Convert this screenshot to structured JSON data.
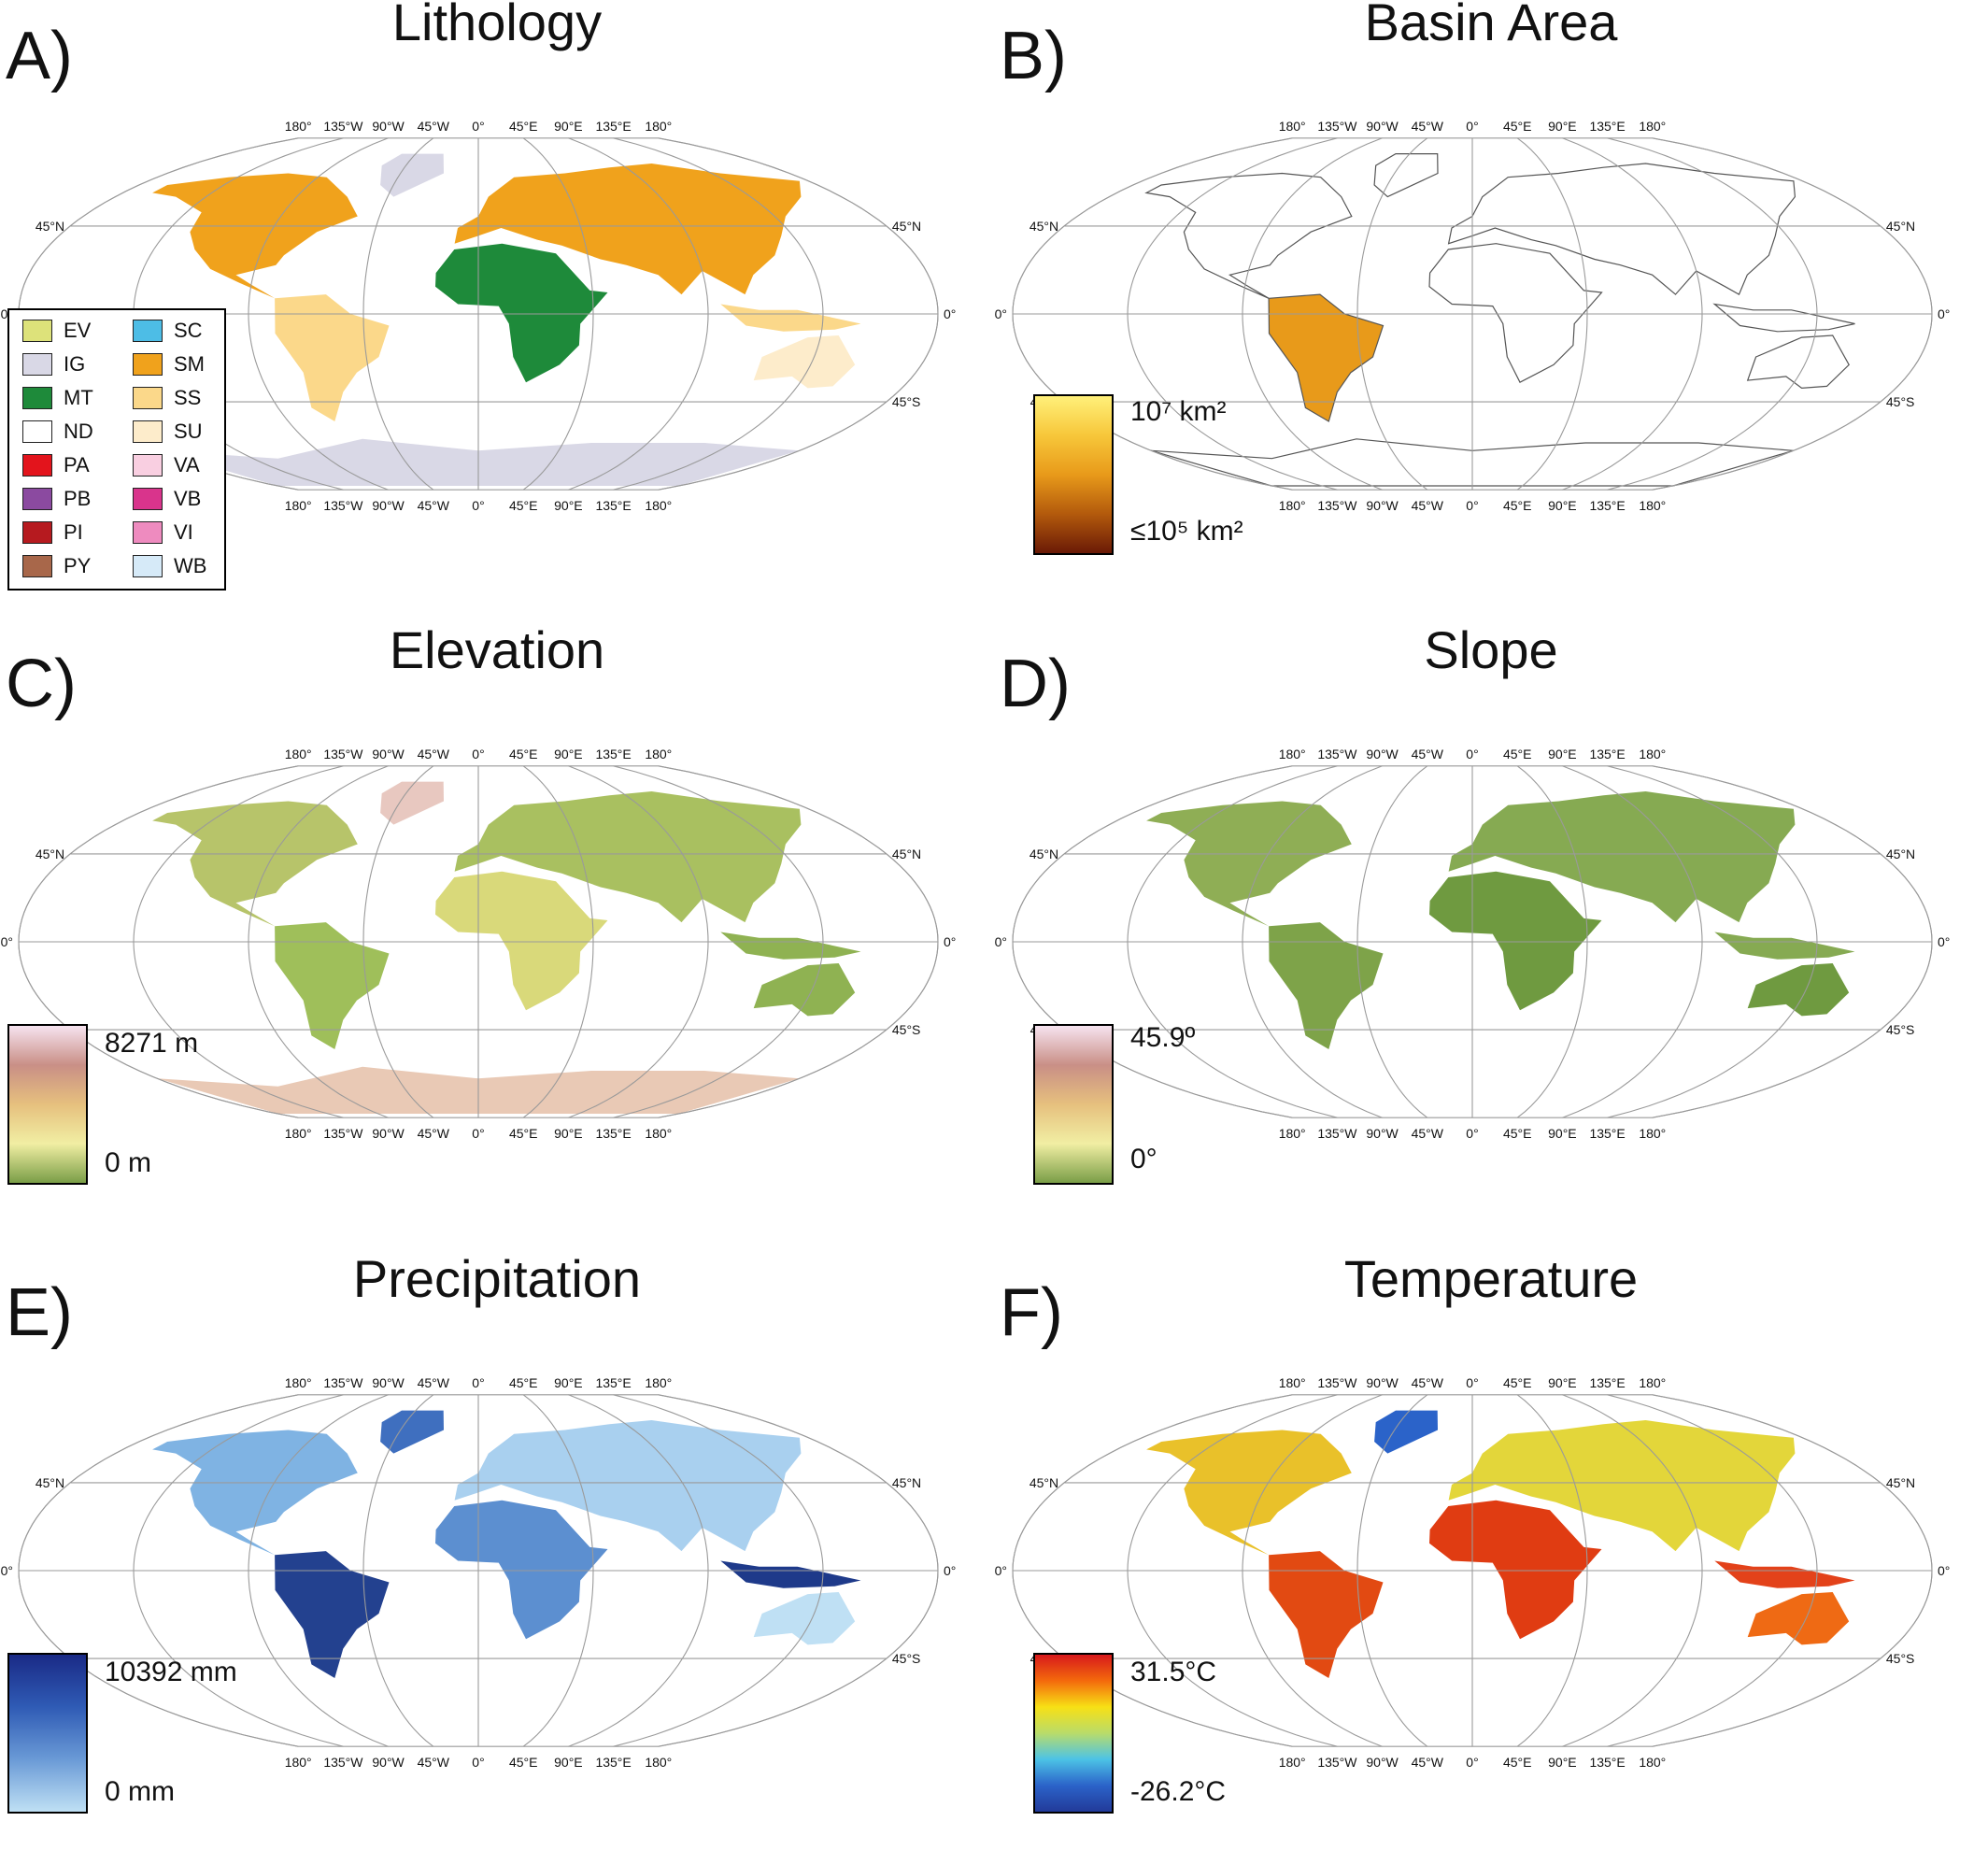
{
  "lon_ticks": [
    "180°",
    "135°W",
    "90°W",
    "45°W",
    "0°",
    "45°E",
    "90°E",
    "135°E",
    "180°"
  ],
  "lat_ticks": {
    "n45": "45°N",
    "eq": "0°",
    "s45": "45°S"
  },
  "panels": [
    {
      "letter": "A)",
      "title": "Lithology"
    },
    {
      "letter": "B)",
      "title": "Basin Area"
    },
    {
      "letter": "C)",
      "title": "Elevation"
    },
    {
      "letter": "D)",
      "title": "Slope"
    },
    {
      "letter": "E)",
      "title": "Precipitation"
    },
    {
      "letter": "F)",
      "title": "Temperature"
    }
  ],
  "lithology_legend": [
    {
      "code": "EV",
      "color": "#dde27a"
    },
    {
      "code": "SC",
      "color": "#4dbde6"
    },
    {
      "code": "IG",
      "color": "#d9d8e6"
    },
    {
      "code": "SM",
      "color": "#f0a21c"
    },
    {
      "code": "MT",
      "color": "#1e8a3a"
    },
    {
      "code": "SS",
      "color": "#fbd88a"
    },
    {
      "code": "ND",
      "color": "#ffffff"
    },
    {
      "code": "SU",
      "color": "#fdeccb"
    },
    {
      "code": "PA",
      "color": "#e3141c"
    },
    {
      "code": "VA",
      "color": "#f9cfe1"
    },
    {
      "code": "PB",
      "color": "#8b4aa0"
    },
    {
      "code": "VB",
      "color": "#d9348c"
    },
    {
      "code": "PI",
      "color": "#b61a1f"
    },
    {
      "code": "VI",
      "color": "#ee8bbf"
    },
    {
      "code": "PY",
      "color": "#a8674a"
    },
    {
      "code": "WB",
      "color": "#d6eaf8"
    }
  ],
  "colorbars": {
    "basin": {
      "max": "10⁷ km²",
      "min": "≤10⁵ km²"
    },
    "elevation": {
      "max": "8271 m",
      "min": "0 m"
    },
    "slope": {
      "max": "45.9º",
      "min": "0°"
    },
    "precipitation": {
      "max": "10392 mm",
      "min": "0 mm"
    },
    "temperature": {
      "max": "31.5°C",
      "min": "-26.2°C"
    }
  }
}
